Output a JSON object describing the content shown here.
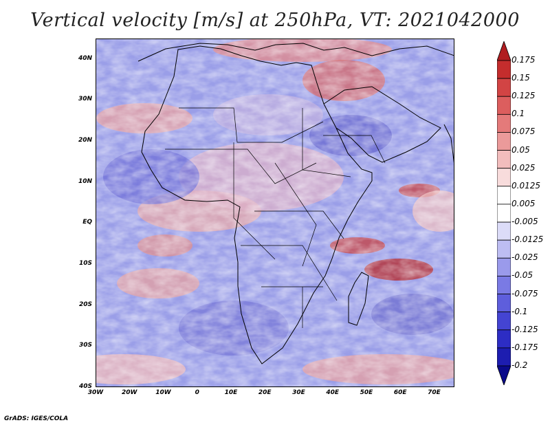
{
  "title": "Vertical velocity [m/s] at 250hPa, VT: 2021042000",
  "credit": "GrADS: IGES/COLA",
  "map": {
    "lon_range": [
      -30,
      76
    ],
    "lat_range": [
      -40,
      45
    ],
    "lat_ticks": [
      {
        "value": 40,
        "label": "40N"
      },
      {
        "value": 30,
        "label": "30N"
      },
      {
        "value": 20,
        "label": "20N"
      },
      {
        "value": 10,
        "label": "10N"
      },
      {
        "value": 0,
        "label": "EQ"
      },
      {
        "value": -10,
        "label": "10S"
      },
      {
        "value": -20,
        "label": "20S"
      },
      {
        "value": -30,
        "label": "30S"
      },
      {
        "value": -40,
        "label": "40S"
      }
    ],
    "lon_ticks": [
      {
        "value": -30,
        "label": "30W"
      },
      {
        "value": -20,
        "label": "20W"
      },
      {
        "value": -10,
        "label": "10W"
      },
      {
        "value": 0,
        "label": "0"
      },
      {
        "value": 10,
        "label": "10E"
      },
      {
        "value": 20,
        "label": "20E"
      },
      {
        "value": 30,
        "label": "30E"
      },
      {
        "value": 40,
        "label": "40E"
      },
      {
        "value": 50,
        "label": "50E"
      },
      {
        "value": 60,
        "label": "60E"
      },
      {
        "value": 70,
        "label": "70E"
      }
    ]
  },
  "colorbar": {
    "labels": [
      "0.175",
      "0.15",
      "0.125",
      "0.1",
      "0.075",
      "0.05",
      "0.025",
      "0.0125",
      "0.005",
      "-0.005",
      "-0.0125",
      "-0.025",
      "-0.05",
      "-0.075",
      "-0.1",
      "-0.125",
      "-0.175",
      "-0.2"
    ],
    "colors": [
      "#b01d20",
      "#c42d2d",
      "#d24444",
      "#dc5e5e",
      "#e47a7a",
      "#eb9a9a",
      "#f2bdbd",
      "#f8dcdc",
      "#ffffff",
      "#ffffff",
      "#dcdcf8",
      "#bdbdf2",
      "#9a9aeb",
      "#7a7ae4",
      "#5e5edc",
      "#4444d2",
      "#2d2dc4",
      "#1d1db0",
      "#0a0a8a"
    ]
  }
}
